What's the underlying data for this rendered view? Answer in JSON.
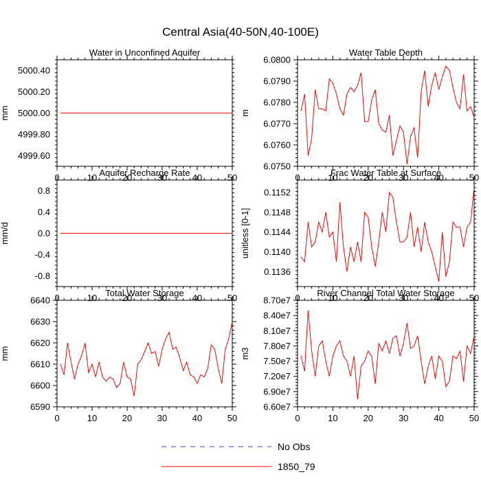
{
  "figure": {
    "title": "Central Asia(40-50N,40-100E)",
    "legend": [
      {
        "label": "No Obs",
        "style": "dashed",
        "color": "#3b3bd0"
      },
      {
        "label": "1850_79",
        "style": "solid",
        "color": "#ff0000"
      }
    ]
  },
  "chart_data": [
    {
      "type": "line",
      "title": "Water in Unconfined Aquifer",
      "ylabel": "mm",
      "xlim": [
        0,
        50
      ],
      "ylim": [
        4999.5,
        5000.5
      ],
      "xticks": [
        0,
        10,
        20,
        30,
        40,
        50
      ],
      "yticks": [
        4999.6,
        4999.8,
        5000.0,
        5000.2,
        5000.4
      ],
      "ytick_labels": [
        "4999.60",
        "4999.80",
        "5000.00",
        "5000.20",
        "5000.40"
      ],
      "series": [
        {
          "name": "1850_79",
          "color": "#ff0000",
          "x": [
            1,
            2,
            3,
            4,
            5,
            6,
            7,
            8,
            9,
            10,
            11,
            12,
            13,
            14,
            15,
            16,
            17,
            18,
            19,
            20,
            21,
            22,
            23,
            24,
            25,
            26,
            27,
            28,
            29,
            30,
            31,
            32,
            33,
            34,
            35,
            36,
            37,
            38,
            39,
            40,
            41,
            42,
            43,
            44,
            45,
            46,
            47,
            48,
            49,
            50
          ],
          "y": [
            5000,
            5000,
            5000,
            5000,
            5000,
            5000,
            5000,
            5000,
            5000,
            5000,
            5000,
            5000,
            5000,
            5000,
            5000,
            5000,
            5000,
            5000,
            5000,
            5000,
            5000,
            5000,
            5000,
            5000,
            5000,
            5000,
            5000,
            5000,
            5000,
            5000,
            5000,
            5000,
            5000,
            5000,
            5000,
            5000,
            5000,
            5000,
            5000,
            5000,
            5000,
            5000,
            5000,
            5000,
            5000,
            5000,
            5000,
            5000,
            5000,
            5000
          ]
        }
      ]
    },
    {
      "type": "line",
      "title": "Water Table Depth",
      "ylabel": "m",
      "xlim": [
        0,
        50
      ],
      "ylim": [
        6.075,
        6.08
      ],
      "xticks": [
        0,
        10,
        20,
        30,
        40,
        50
      ],
      "yticks": [
        6.075,
        6.076,
        6.077,
        6.078,
        6.079,
        6.08
      ],
      "ytick_labels": [
        "6.0750",
        "6.0760",
        "6.0770",
        "6.0780",
        "6.0790",
        "6.0800"
      ],
      "series": [
        {
          "name": "1850_79",
          "color": "#ff0000",
          "x": [
            1,
            2,
            3,
            4,
            5,
            6,
            7,
            8,
            9,
            10,
            11,
            12,
            13,
            14,
            15,
            16,
            17,
            18,
            19,
            20,
            21,
            22,
            23,
            24,
            25,
            26,
            27,
            28,
            29,
            30,
            31,
            32,
            33,
            34,
            35,
            36,
            37,
            38,
            39,
            40,
            41,
            42,
            43,
            44,
            45,
            46,
            47,
            48,
            49,
            50
          ],
          "y": [
            6.0776,
            6.0784,
            6.0755,
            6.0763,
            6.0786,
            6.0777,
            6.0777,
            6.0776,
            6.0791,
            6.0789,
            6.0784,
            6.0777,
            6.0774,
            6.0784,
            6.0787,
            6.0785,
            6.0788,
            6.0794,
            6.0771,
            6.0771,
            6.0781,
            6.0786,
            6.077,
            6.0767,
            6.0766,
            6.0774,
            6.0755,
            6.0762,
            6.0769,
            6.0766,
            6.0751,
            6.0764,
            6.0768,
            6.0754,
            6.0785,
            6.0795,
            6.0778,
            6.0788,
            6.0794,
            6.0786,
            6.0792,
            6.0797,
            6.0795,
            6.0787,
            6.078,
            6.0777,
            6.0793,
            6.0776,
            6.0778,
            6.0773
          ]
        }
      ]
    },
    {
      "type": "line",
      "title": "Aquifer Recharge Rate",
      "ylabel": "mm/d",
      "xlim": [
        0,
        50
      ],
      "ylim": [
        -1.0,
        1.0
      ],
      "xticks": [
        0,
        10,
        20,
        30,
        40,
        50
      ],
      "yticks": [
        -0.8,
        -0.4,
        0.0,
        0.4,
        0.8
      ],
      "ytick_labels": [
        "-0.8",
        "-0.4",
        "0.0",
        "0.4",
        "0.8"
      ],
      "series": [
        {
          "name": "1850_79",
          "color": "#ff0000",
          "x": [
            1,
            2,
            3,
            4,
            5,
            6,
            7,
            8,
            9,
            10,
            11,
            12,
            13,
            14,
            15,
            16,
            17,
            18,
            19,
            20,
            21,
            22,
            23,
            24,
            25,
            26,
            27,
            28,
            29,
            30,
            31,
            32,
            33,
            34,
            35,
            36,
            37,
            38,
            39,
            40,
            41,
            42,
            43,
            44,
            45,
            46,
            47,
            48,
            49,
            50
          ],
          "y": [
            0,
            0,
            0,
            0,
            0,
            0,
            0,
            0,
            0,
            0,
            0,
            0,
            0,
            0,
            0,
            0,
            0,
            0,
            0,
            0,
            0,
            0,
            0,
            0,
            0,
            0,
            0,
            0,
            0,
            0,
            0,
            0,
            0,
            0,
            0,
            0,
            0,
            0,
            0,
            0,
            0,
            0,
            0,
            0,
            0,
            0,
            0,
            0,
            0,
            0
          ]
        }
      ]
    },
    {
      "type": "line",
      "title": "Frac Water Table at Surface",
      "ylabel": "unitless [0-1]",
      "xlim": [
        0,
        50
      ],
      "ylim": [
        0.1133,
        0.11545
      ],
      "xticks": [
        0,
        10,
        20,
        30,
        40,
        50
      ],
      "yticks": [
        0.1136,
        0.114,
        0.1144,
        0.1148,
        0.1152
      ],
      "ytick_labels": [
        "0.1136",
        "0.1140",
        "0.1144",
        "0.1148",
        "0.1152"
      ],
      "series": [
        {
          "name": "1850_79",
          "color": "#ff0000",
          "x": [
            1,
            2,
            3,
            4,
            5,
            6,
            7,
            8,
            9,
            10,
            11,
            12,
            13,
            14,
            15,
            16,
            17,
            18,
            19,
            20,
            21,
            22,
            23,
            24,
            25,
            26,
            27,
            28,
            29,
            30,
            31,
            32,
            33,
            34,
            35,
            36,
            37,
            38,
            39,
            40,
            41,
            42,
            43,
            44,
            45,
            46,
            47,
            48,
            49,
            50
          ],
          "y": [
            0.1139,
            0.1138,
            0.1146,
            0.1141,
            0.1142,
            0.1146,
            0.1144,
            0.1148,
            0.1143,
            0.1144,
            0.1138,
            0.115,
            0.1141,
            0.1136,
            0.1141,
            0.1138,
            0.1142,
            0.1138,
            0.1148,
            0.1147,
            0.1141,
            0.1137,
            0.1142,
            0.1148,
            0.1144,
            0.1152,
            0.1151,
            0.1146,
            0.1142,
            0.1142,
            0.1143,
            0.1148,
            0.1141,
            0.1145,
            0.114,
            0.1146,
            0.1142,
            0.114,
            0.1137,
            0.1134,
            0.1144,
            0.1135,
            0.1138,
            0.1146,
            0.1145,
            0.1145,
            0.1141,
            0.1145,
            0.1146,
            0.1153
          ]
        }
      ]
    },
    {
      "type": "line",
      "title": "Total Water Storage",
      "ylabel": "mm",
      "xlim": [
        0,
        50
      ],
      "ylim": [
        6590,
        6640
      ],
      "xticks": [
        0,
        10,
        20,
        30,
        40,
        50
      ],
      "yticks": [
        6590,
        6600,
        6610,
        6620,
        6630,
        6640
      ],
      "ytick_labels": [
        "6590",
        "6600",
        "6610",
        "6620",
        "6630",
        "6640"
      ],
      "series": [
        {
          "name": "1850_79",
          "color": "#ff0000",
          "x": [
            1,
            2,
            3,
            4,
            5,
            6,
            7,
            8,
            9,
            10,
            11,
            12,
            13,
            14,
            15,
            16,
            17,
            18,
            19,
            20,
            21,
            22,
            23,
            24,
            25,
            26,
            27,
            28,
            29,
            30,
            31,
            32,
            33,
            34,
            35,
            36,
            37,
            38,
            39,
            40,
            41,
            42,
            43,
            44,
            45,
            46,
            47,
            48,
            49,
            50
          ],
          "y": [
            6610,
            6605,
            6620,
            6611,
            6603,
            6610,
            6614,
            6620,
            6606,
            6610,
            6604,
            6611,
            6604,
            6602,
            6604,
            6603,
            6599,
            6601,
            6611,
            6604,
            6603,
            6595,
            6610,
            6612,
            6616,
            6620,
            6615,
            6616,
            6609,
            6617,
            6622,
            6625,
            6617,
            6618,
            6613,
            6607,
            6611,
            6605,
            6604,
            6601,
            6605,
            6604,
            6608,
            6619,
            6617,
            6608,
            6601,
            6617,
            6622,
            6630
          ]
        }
      ]
    },
    {
      "type": "line",
      "title": "River Channel Total Water Storage",
      "ylabel": "m3",
      "xlim": [
        0,
        50
      ],
      "ylim": [
        66000000,
        87000000
      ],
      "xticks": [
        0,
        10,
        20,
        30,
        40,
        50
      ],
      "yticks": [
        66000000,
        69000000,
        72000000,
        75000000,
        78000000,
        81000000,
        84000000,
        87000000
      ],
      "ytick_labels": [
        "6.60e7",
        "6.90e7",
        "7.20e7",
        "7.50e7",
        "7.80e7",
        "8.10e7",
        "8.40e7",
        "8.70e7"
      ],
      "series": [
        {
          "name": "1850_79",
          "color": "#ff0000",
          "x": [
            1,
            2,
            3,
            4,
            5,
            6,
            7,
            8,
            9,
            10,
            11,
            12,
            13,
            14,
            15,
            16,
            17,
            18,
            19,
            20,
            21,
            22,
            23,
            24,
            25,
            26,
            27,
            28,
            29,
            30,
            31,
            32,
            33,
            34,
            35,
            36,
            37,
            38,
            39,
            40,
            41,
            42,
            43,
            44,
            45,
            46,
            47,
            48,
            49,
            50
          ],
          "y": [
            76000000,
            73000000,
            85000000,
            77000000,
            72000000,
            78000000,
            79000000,
            75000000,
            72000000,
            76000000,
            78000000,
            79000000,
            76000000,
            75000000,
            72000000,
            76000000,
            67500000,
            74000000,
            75000000,
            77000000,
            76000000,
            70500000,
            78500000,
            77000000,
            79000000,
            76500000,
            79500000,
            80000000,
            76000000,
            78500000,
            82500000,
            77500000,
            78000000,
            80000000,
            75000000,
            70500000,
            74000000,
            76000000,
            71500000,
            76000000,
            75000000,
            70000000,
            71000000,
            76000000,
            75500000,
            77000000,
            71000000,
            78000000,
            76500000,
            80000000
          ]
        }
      ]
    }
  ]
}
